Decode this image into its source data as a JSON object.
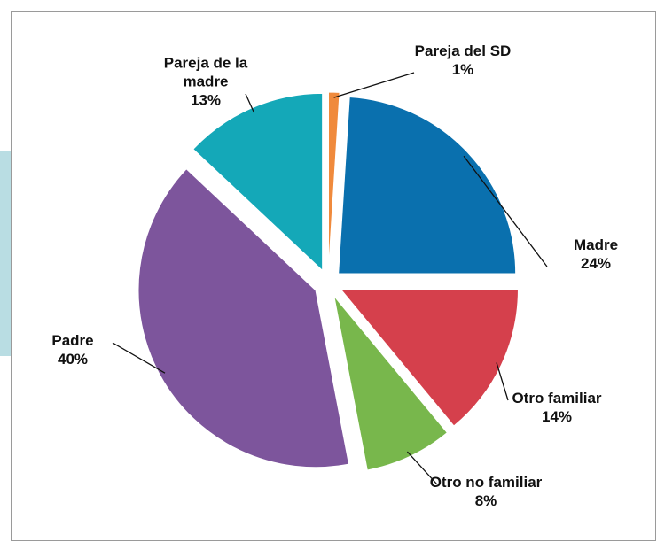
{
  "chart_data": {
    "type": "pie",
    "categories": [
      "Pareja del SD",
      "Madre",
      "Otro familiar",
      "Otro no familiar",
      "Padre",
      "Pareja de la madre"
    ],
    "values": [
      1,
      24,
      14,
      8,
      40,
      13
    ],
    "value_labels": [
      "1%",
      "24%",
      "14%",
      "8%",
      "40%",
      "13%"
    ],
    "colors": [
      "#f08a3c",
      "#0a70ae",
      "#d5404c",
      "#78b74c",
      "#7d559c",
      "#14a8b8"
    ]
  }
}
